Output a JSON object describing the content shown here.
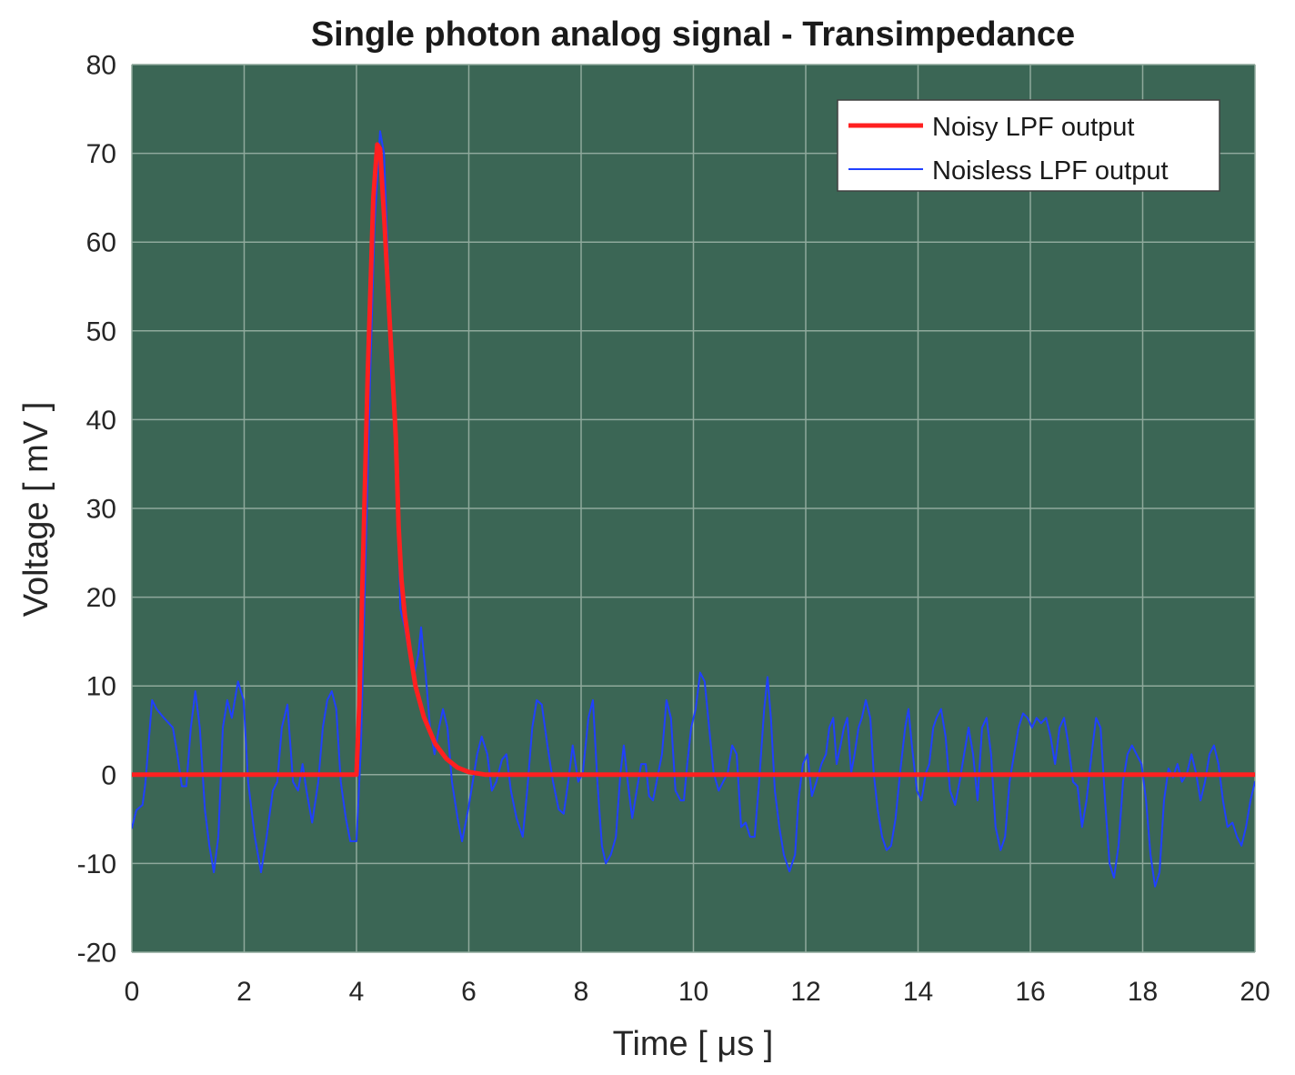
{
  "chart_data": {
    "type": "line",
    "title": "Single photon analog signal - Transimpedance",
    "xlabel": "Time [ μs ]",
    "ylabel": "Voltage [ mV ]",
    "xlim": [
      0,
      20
    ],
    "ylim": [
      -20,
      80
    ],
    "xticks": [
      0,
      2,
      4,
      6,
      8,
      10,
      12,
      14,
      16,
      18,
      20
    ],
    "yticks": [
      80,
      70,
      60,
      50,
      40,
      30,
      20,
      10,
      0,
      -10,
      -20
    ],
    "grid": true,
    "legend_position": "top-right",
    "series": [
      {
        "name": "Noisy LPF output",
        "color": "#ff2020",
        "points": [
          [
            0,
            0
          ],
          [
            4.0,
            0
          ],
          [
            4.05,
            8
          ],
          [
            4.1,
            20
          ],
          [
            4.2,
            45
          ],
          [
            4.3,
            65
          ],
          [
            4.37,
            71
          ],
          [
            4.42,
            70.5
          ],
          [
            4.5,
            62
          ],
          [
            4.6,
            50
          ],
          [
            4.7,
            38
          ],
          [
            4.75,
            28
          ],
          [
            4.8,
            22
          ],
          [
            4.86,
            18
          ],
          [
            4.95,
            14
          ],
          [
            5.05,
            10
          ],
          [
            5.2,
            6.5
          ],
          [
            5.4,
            3.5
          ],
          [
            5.6,
            1.8
          ],
          [
            5.8,
            0.8
          ],
          [
            6.0,
            0.3
          ],
          [
            6.3,
            0
          ],
          [
            20,
            0
          ]
        ]
      },
      {
        "name": "Noisless LPF output",
        "color": "#2040ff",
        "points": [
          [
            0,
            -6
          ],
          [
            0.08,
            -4
          ],
          [
            0.19,
            -3.4
          ],
          [
            0.24,
            -1
          ],
          [
            0.36,
            8.4
          ],
          [
            0.44,
            7.4
          ],
          [
            0.57,
            6.4
          ],
          [
            0.73,
            5.3
          ],
          [
            0.81,
            2.3
          ],
          [
            0.89,
            -1.3
          ],
          [
            0.97,
            -1.3
          ],
          [
            1.05,
            5.3
          ],
          [
            1.13,
            9.4
          ],
          [
            1.21,
            5.3
          ],
          [
            1.3,
            -3.9
          ],
          [
            1.38,
            -8
          ],
          [
            1.46,
            -11
          ],
          [
            1.54,
            -7
          ],
          [
            1.62,
            5.3
          ],
          [
            1.7,
            8.4
          ],
          [
            1.78,
            6.4
          ],
          [
            1.89,
            10.5
          ],
          [
            1.99,
            8.4
          ],
          [
            2.07,
            -0.8
          ],
          [
            2.19,
            -7
          ],
          [
            2.3,
            -11
          ],
          [
            2.4,
            -7
          ],
          [
            2.51,
            -1.8
          ],
          [
            2.59,
            -0.8
          ],
          [
            2.67,
            5.3
          ],
          [
            2.77,
            7.9
          ],
          [
            2.87,
            -0.8
          ],
          [
            2.96,
            -1.8
          ],
          [
            3.04,
            1.2
          ],
          [
            3.11,
            -1.8
          ],
          [
            3.21,
            -5.4
          ],
          [
            3.32,
            -0.8
          ],
          [
            3.4,
            5.3
          ],
          [
            3.48,
            8.4
          ],
          [
            3.56,
            9.4
          ],
          [
            3.64,
            7.4
          ],
          [
            3.72,
            -0.8
          ],
          [
            3.81,
            -4.9
          ],
          [
            3.89,
            -7.5
          ],
          [
            4.0,
            -7.5
          ],
          [
            4.08,
            3.3
          ],
          [
            4.16,
            23.8
          ],
          [
            4.24,
            44
          ],
          [
            4.32,
            61.7
          ],
          [
            4.42,
            72.5
          ],
          [
            4.49,
            70
          ],
          [
            4.57,
            56.6
          ],
          [
            4.65,
            44
          ],
          [
            4.73,
            33
          ],
          [
            4.78,
            18.7
          ],
          [
            4.86,
            16.6
          ],
          [
            4.94,
            13.5
          ],
          [
            5.02,
            11
          ],
          [
            5.1,
            13.5
          ],
          [
            5.15,
            16.6
          ],
          [
            5.23,
            11.5
          ],
          [
            5.31,
            5.3
          ],
          [
            5.39,
            2.3
          ],
          [
            5.47,
            5.3
          ],
          [
            5.54,
            7.4
          ],
          [
            5.62,
            5.3
          ],
          [
            5.7,
            -0.8
          ],
          [
            5.8,
            -4.9
          ],
          [
            5.88,
            -7.5
          ],
          [
            5.99,
            -3.9
          ],
          [
            6.07,
            -0.8
          ],
          [
            6.15,
            2.3
          ],
          [
            6.23,
            4.3
          ],
          [
            6.33,
            2.3
          ],
          [
            6.41,
            -1.8
          ],
          [
            6.49,
            -0.8
          ],
          [
            6.59,
            1.7
          ],
          [
            6.67,
            2.3
          ],
          [
            6.75,
            -1.8
          ],
          [
            6.85,
            -4.9
          ],
          [
            6.96,
            -7
          ],
          [
            7.04,
            -1.8
          ],
          [
            7.13,
            5.3
          ],
          [
            7.21,
            8.4
          ],
          [
            7.3,
            7.9
          ],
          [
            7.4,
            3.3
          ],
          [
            7.5,
            -0.8
          ],
          [
            7.6,
            -3.9
          ],
          [
            7.69,
            -4.4
          ],
          [
            7.77,
            -0.8
          ],
          [
            7.85,
            3.3
          ],
          [
            7.95,
            -0.8
          ],
          [
            8.03,
            0.2
          ],
          [
            8.13,
            6.4
          ],
          [
            8.21,
            8.4
          ],
          [
            8.29,
            -0.8
          ],
          [
            8.37,
            -8
          ],
          [
            8.44,
            -10
          ],
          [
            8.53,
            -9
          ],
          [
            8.62,
            -7
          ],
          [
            8.7,
            0.2
          ],
          [
            8.76,
            3.3
          ],
          [
            8.83,
            -0.8
          ],
          [
            8.91,
            -4.9
          ],
          [
            8.99,
            -1.8
          ],
          [
            9.07,
            1.2
          ],
          [
            9.15,
            1.2
          ],
          [
            9.21,
            -2.4
          ],
          [
            9.28,
            -2.9
          ],
          [
            9.36,
            -0.3
          ],
          [
            9.44,
            2.3
          ],
          [
            9.52,
            8.4
          ],
          [
            9.6,
            6.4
          ],
          [
            9.68,
            -1.8
          ],
          [
            9.77,
            -2.9
          ],
          [
            9.83,
            -2.9
          ],
          [
            9.89,
            1.2
          ],
          [
            9.96,
            5.3
          ],
          [
            10.04,
            7.4
          ],
          [
            10.12,
            11.5
          ],
          [
            10.2,
            10.5
          ],
          [
            10.28,
            5.3
          ],
          [
            10.36,
            0.2
          ],
          [
            10.45,
            -1.8
          ],
          [
            10.53,
            -0.8
          ],
          [
            10.61,
            0.2
          ],
          [
            10.69,
            3.3
          ],
          [
            10.77,
            2.3
          ],
          [
            10.85,
            -5.9
          ],
          [
            10.93,
            -5.4
          ],
          [
            11.01,
            -7
          ],
          [
            11.09,
            -7
          ],
          [
            11.17,
            -0.8
          ],
          [
            11.26,
            7.4
          ],
          [
            11.32,
            11
          ],
          [
            11.38,
            6.4
          ],
          [
            11.45,
            -1.8
          ],
          [
            11.53,
            -5.9
          ],
          [
            11.61,
            -9
          ],
          [
            11.71,
            -10.9
          ],
          [
            11.81,
            -9
          ],
          [
            11.87,
            -2.9
          ],
          [
            11.95,
            1.2
          ],
          [
            12.03,
            2.3
          ],
          [
            12.11,
            -2.4
          ],
          [
            12.19,
            -0.8
          ],
          [
            12.28,
            1.2
          ],
          [
            12.36,
            2.3
          ],
          [
            12.42,
            5.3
          ],
          [
            12.49,
            6.4
          ],
          [
            12.55,
            1.2
          ],
          [
            12.62,
            3.3
          ],
          [
            12.68,
            5.3
          ],
          [
            12.74,
            6.4
          ],
          [
            12.81,
            0.2
          ],
          [
            12.87,
            2.3
          ],
          [
            12.94,
            5.3
          ],
          [
            13.0,
            6.4
          ],
          [
            13.07,
            8.4
          ],
          [
            13.15,
            6.4
          ],
          [
            13.21,
            0.2
          ],
          [
            13.28,
            -3.9
          ],
          [
            13.36,
            -7
          ],
          [
            13.44,
            -8.5
          ],
          [
            13.52,
            -8
          ],
          [
            13.6,
            -4.9
          ],
          [
            13.68,
            0.2
          ],
          [
            13.77,
            5.3
          ],
          [
            13.83,
            7.4
          ],
          [
            13.89,
            3.3
          ],
          [
            13.98,
            -1.8
          ],
          [
            14.06,
            -2.9
          ],
          [
            14.14,
            0.2
          ],
          [
            14.2,
            1.2
          ],
          [
            14.27,
            5.3
          ],
          [
            14.33,
            6.4
          ],
          [
            14.41,
            7.4
          ],
          [
            14.49,
            4.3
          ],
          [
            14.57,
            -1.8
          ],
          [
            14.66,
            -3.4
          ],
          [
            14.74,
            -0.8
          ],
          [
            14.82,
            2.3
          ],
          [
            14.9,
            5.3
          ],
          [
            14.98,
            2.3
          ],
          [
            15.06,
            -2.9
          ],
          [
            15.14,
            5.3
          ],
          [
            15.22,
            6.4
          ],
          [
            15.3,
            2.3
          ],
          [
            15.38,
            -5.9
          ],
          [
            15.47,
            -8.5
          ],
          [
            15.55,
            -7
          ],
          [
            15.63,
            -0.8
          ],
          [
            15.71,
            2.3
          ],
          [
            15.79,
            5.3
          ],
          [
            15.87,
            6.9
          ],
          [
            15.95,
            6.4
          ],
          [
            16.03,
            5.3
          ],
          [
            16.11,
            6.4
          ],
          [
            16.19,
            5.8
          ],
          [
            16.28,
            6.4
          ],
          [
            16.36,
            4.3
          ],
          [
            16.44,
            1.2
          ],
          [
            16.52,
            5.3
          ],
          [
            16.6,
            6.4
          ],
          [
            16.68,
            3.3
          ],
          [
            16.76,
            -0.8
          ],
          [
            16.84,
            -1.3
          ],
          [
            16.92,
            -5.9
          ],
          [
            17.0,
            -2.9
          ],
          [
            17.09,
            2.3
          ],
          [
            17.17,
            6.4
          ],
          [
            17.25,
            5.3
          ],
          [
            17.33,
            -2.9
          ],
          [
            17.41,
            -10
          ],
          [
            17.49,
            -11.6
          ],
          [
            17.57,
            -8
          ],
          [
            17.65,
            -0.8
          ],
          [
            17.73,
            2.3
          ],
          [
            17.81,
            3.3
          ],
          [
            17.89,
            2.3
          ],
          [
            17.98,
            1.2
          ],
          [
            18.06,
            -2.9
          ],
          [
            18.14,
            -9
          ],
          [
            18.22,
            -12.6
          ],
          [
            18.3,
            -11
          ],
          [
            18.38,
            -2.9
          ],
          [
            18.46,
            0.7
          ],
          [
            18.54,
            -0.3
          ],
          [
            18.62,
            1.2
          ],
          [
            18.7,
            -0.8
          ],
          [
            18.79,
            0.2
          ],
          [
            18.87,
            2.3
          ],
          [
            18.95,
            0.2
          ],
          [
            19.03,
            -2.9
          ],
          [
            19.11,
            -0.8
          ],
          [
            19.19,
            2.3
          ],
          [
            19.27,
            3.3
          ],
          [
            19.35,
            1.2
          ],
          [
            19.43,
            -2.9
          ],
          [
            19.51,
            -5.9
          ],
          [
            19.6,
            -5.4
          ],
          [
            19.68,
            -7
          ],
          [
            19.76,
            -8
          ],
          [
            19.84,
            -5.9
          ],
          [
            19.92,
            -2.9
          ],
          [
            20.0,
            -0.8
          ]
        ]
      }
    ]
  },
  "colors": {
    "plot_background": "#3b6655",
    "grid": "#8fa99c",
    "legend_background": "#ffffff",
    "legend_border": "#404040"
  }
}
